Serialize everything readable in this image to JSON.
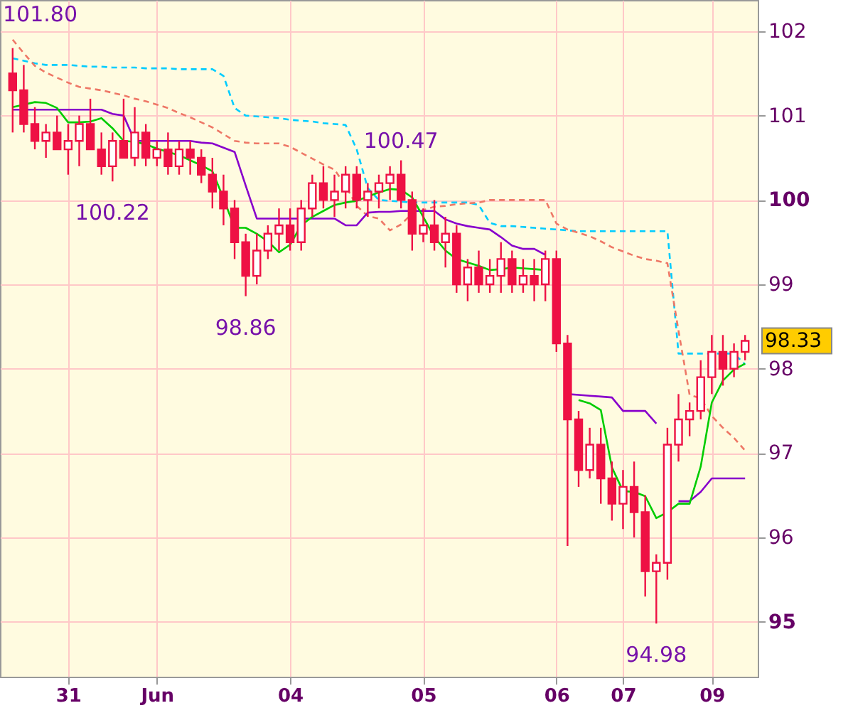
{
  "chart_data": {
    "type": "candlestick",
    "categories": [
      null,
      null,
      null,
      null,
      null,
      "31",
      null,
      null,
      null,
      null,
      null,
      null,
      null,
      "Jun",
      null,
      null,
      null,
      null,
      null,
      null,
      null,
      null,
      null,
      null,
      null,
      "04",
      null,
      null,
      null,
      null,
      null,
      null,
      null,
      null,
      null,
      null,
      null,
      "05",
      null,
      null,
      null,
      null,
      null,
      null,
      null,
      null,
      null,
      null,
      null,
      "06",
      null,
      null,
      null,
      null,
      null,
      "07",
      null,
      null,
      null,
      null,
      null,
      null,
      null,
      "09",
      null,
      null,
      null
    ],
    "ylim": [
      94.35,
      102.37
    ],
    "yticks": [
      95,
      96,
      97,
      98,
      99,
      100,
      101,
      102
    ],
    "grid": true,
    "series": [
      {
        "type": "line",
        "color": "#00ccff",
        "line_style": "dashed",
        "values": [
          101.68,
          101.65,
          101.62,
          101.6,
          101.6,
          101.6,
          101.59,
          101.58,
          101.58,
          101.57,
          101.57,
          101.57,
          101.56,
          101.56,
          101.56,
          101.55,
          101.55,
          101.55,
          101.55,
          101.47,
          101.09,
          101.0,
          100.99,
          100.98,
          100.97,
          100.95,
          100.94,
          100.93,
          100.91,
          100.9,
          100.89,
          100.6,
          100.14,
          100.0,
          99.99,
          99.98,
          99.97,
          99.97,
          99.97,
          99.97,
          99.97,
          99.97,
          99.94,
          99.73,
          99.69,
          99.69,
          99.68,
          99.67,
          99.66,
          99.65,
          99.64,
          99.63,
          99.63,
          99.63,
          99.63,
          99.63,
          99.63,
          99.63,
          99.63,
          99.63,
          98.18,
          98.18,
          98.18,
          98.18,
          98.18,
          98.18,
          98.05
        ]
      },
      {
        "type": "line",
        "color": "#ee7766",
        "line_style": "dashed",
        "values": [
          101.9,
          101.74,
          101.59,
          101.51,
          101.45,
          101.39,
          101.34,
          101.32,
          101.3,
          101.27,
          101.24,
          101.2,
          101.17,
          101.13,
          101.09,
          101.03,
          100.98,
          100.92,
          100.86,
          100.78,
          100.7,
          100.68,
          100.67,
          100.67,
          100.67,
          100.63,
          100.56,
          100.49,
          100.42,
          100.36,
          100.17,
          99.93,
          99.81,
          99.78,
          99.64,
          99.71,
          99.84,
          99.88,
          99.92,
          99.93,
          99.95,
          99.96,
          99.97,
          100.0,
          100.0,
          100.0,
          100.0,
          100.0,
          100.0,
          99.72,
          99.65,
          99.61,
          99.57,
          99.51,
          99.44,
          99.39,
          99.34,
          99.3,
          99.28,
          99.25,
          98.45,
          97.69,
          97.65,
          97.44,
          97.3,
          97.18,
          97.03
        ]
      },
      {
        "type": "line",
        "color": "#8800cc",
        "line_style": "solid",
        "values": [
          101.07,
          101.07,
          101.07,
          101.07,
          101.07,
          101.07,
          101.07,
          101.07,
          101.07,
          101.02,
          101.0,
          100.7,
          100.7,
          100.7,
          100.7,
          100.7,
          100.7,
          100.68,
          100.67,
          100.62,
          100.57,
          100.17,
          99.78,
          99.78,
          99.78,
          99.78,
          99.78,
          99.78,
          99.78,
          99.78,
          99.7,
          99.7,
          99.85,
          99.86,
          99.86,
          99.87,
          99.87,
          99.87,
          99.87,
          99.77,
          99.72,
          99.69,
          99.67,
          99.65,
          99.56,
          99.46,
          99.42,
          99.42,
          99.35,
          null,
          97.7,
          97.69,
          97.68,
          97.67,
          97.66,
          97.5,
          97.5,
          97.5,
          97.35,
          null,
          96.43,
          96.43,
          96.54,
          96.7,
          96.7,
          96.7,
          96.7
        ]
      },
      {
        "type": "line",
        "color": "#00cc00",
        "line_style": "solid",
        "values": [
          101.1,
          101.13,
          101.16,
          101.15,
          101.09,
          100.92,
          100.92,
          100.93,
          100.97,
          100.85,
          100.7,
          100.69,
          100.66,
          100.61,
          100.57,
          100.53,
          100.47,
          100.41,
          100.34,
          100.02,
          99.67,
          99.67,
          99.6,
          99.51,
          99.38,
          99.47,
          99.7,
          99.8,
          99.87,
          99.94,
          99.97,
          99.99,
          100.04,
          100.09,
          100.13,
          100.12,
          100.03,
          99.8,
          99.56,
          99.4,
          99.3,
          99.26,
          99.22,
          99.17,
          99.18,
          99.2,
          99.19,
          99.18,
          99.17,
          null,
          null,
          97.63,
          97.59,
          97.51,
          96.83,
          96.55,
          96.54,
          96.49,
          96.23,
          96.3,
          96.4,
          96.4,
          96.84,
          97.6,
          97.86,
          97.99,
          98.06
        ]
      },
      {
        "color": "#ee1144",
        "ohlc": [
          [
            101.5,
            101.8,
            100.8,
            101.3
          ],
          [
            101.3,
            101.6,
            100.8,
            100.9
          ],
          [
            100.9,
            101.1,
            100.6,
            100.7
          ],
          [
            100.7,
            100.9,
            100.5,
            100.8
          ],
          [
            100.8,
            101.0,
            100.6,
            100.6
          ],
          [
            100.6,
            100.9,
            100.3,
            100.7
          ],
          [
            100.7,
            101.0,
            100.4,
            100.9
          ],
          [
            100.9,
            101.2,
            100.6,
            100.6
          ],
          [
            100.6,
            100.8,
            100.3,
            100.4
          ],
          [
            100.4,
            100.8,
            100.22,
            100.7
          ],
          [
            100.7,
            101.2,
            100.5,
            100.5
          ],
          [
            100.5,
            101.1,
            100.4,
            100.8
          ],
          [
            100.8,
            100.9,
            100.4,
            100.5
          ],
          [
            100.5,
            100.7,
            100.4,
            100.6
          ],
          [
            100.6,
            100.8,
            100.3,
            100.4
          ],
          [
            100.4,
            100.7,
            100.3,
            100.6
          ],
          [
            100.6,
            100.7,
            100.3,
            100.5
          ],
          [
            100.5,
            100.6,
            100.2,
            100.3
          ],
          [
            100.3,
            100.5,
            99.9,
            100.1
          ],
          [
            100.1,
            100.3,
            99.7,
            99.9
          ],
          [
            99.9,
            100.0,
            99.3,
            99.5
          ],
          [
            99.5,
            99.6,
            98.86,
            99.1
          ],
          [
            99.1,
            99.6,
            99.0,
            99.4
          ],
          [
            99.4,
            99.7,
            99.3,
            99.6
          ],
          [
            99.6,
            99.9,
            99.4,
            99.7
          ],
          [
            99.7,
            99.9,
            99.4,
            99.5
          ],
          [
            99.5,
            100.0,
            99.4,
            99.9
          ],
          [
            99.9,
            100.3,
            99.8,
            100.2
          ],
          [
            100.2,
            100.4,
            99.9,
            100.0
          ],
          [
            100.0,
            100.3,
            99.8,
            100.1
          ],
          [
            100.1,
            100.4,
            99.9,
            100.3
          ],
          [
            100.3,
            100.4,
            99.9,
            100.0
          ],
          [
            100.0,
            100.2,
            99.8,
            100.1
          ],
          [
            100.1,
            100.3,
            99.9,
            100.2
          ],
          [
            100.2,
            100.4,
            100.0,
            100.3
          ],
          [
            100.3,
            100.47,
            99.9,
            100.0
          ],
          [
            100.0,
            100.1,
            99.4,
            99.6
          ],
          [
            99.6,
            99.9,
            99.5,
            99.7
          ],
          [
            99.7,
            100.0,
            99.4,
            99.5
          ],
          [
            99.5,
            99.8,
            99.2,
            99.6
          ],
          [
            99.6,
            99.7,
            98.9,
            99.0
          ],
          [
            99.0,
            99.3,
            98.8,
            99.2
          ],
          [
            99.2,
            99.4,
            98.9,
            99.0
          ],
          [
            99.0,
            99.3,
            98.9,
            99.1
          ],
          [
            99.1,
            99.5,
            98.9,
            99.3
          ],
          [
            99.3,
            99.4,
            98.9,
            99.0
          ],
          [
            99.0,
            99.3,
            98.9,
            99.1
          ],
          [
            99.1,
            99.3,
            98.8,
            99.0
          ],
          [
            99.0,
            99.4,
            98.8,
            99.3
          ],
          [
            99.3,
            99.4,
            98.2,
            98.3
          ],
          [
            98.3,
            98.4,
            95.9,
            97.4
          ],
          [
            97.4,
            97.5,
            96.6,
            96.8
          ],
          [
            96.8,
            97.3,
            96.7,
            97.1
          ],
          [
            97.1,
            97.3,
            96.4,
            96.7
          ],
          [
            96.7,
            96.9,
            96.2,
            96.4
          ],
          [
            96.4,
            96.8,
            96.1,
            96.6
          ],
          [
            96.6,
            96.9,
            96.0,
            96.3
          ],
          [
            96.3,
            96.5,
            95.3,
            95.6
          ],
          [
            95.6,
            95.8,
            94.98,
            95.7
          ],
          [
            95.7,
            97.3,
            95.5,
            97.1
          ],
          [
            97.1,
            97.7,
            96.9,
            97.4
          ],
          [
            97.4,
            97.6,
            97.2,
            97.5
          ],
          [
            97.5,
            98.1,
            97.4,
            97.9
          ],
          [
            97.9,
            98.4,
            97.7,
            98.2
          ],
          [
            98.2,
            98.4,
            97.8,
            98.0
          ],
          [
            98.0,
            98.3,
            97.9,
            98.2
          ],
          [
            98.2,
            98.4,
            98.1,
            98.33
          ]
        ]
      }
    ],
    "annotations": [
      "101.80",
      {
        "text": "100.22",
        "y": 100.22
      },
      {
        "text": "98.86",
        "y": 98.86
      },
      {
        "text": "100.47",
        "y": 100.47
      },
      {
        "text": "94.98",
        "y": 94.98
      },
      "98.33"
    ]
  }
}
